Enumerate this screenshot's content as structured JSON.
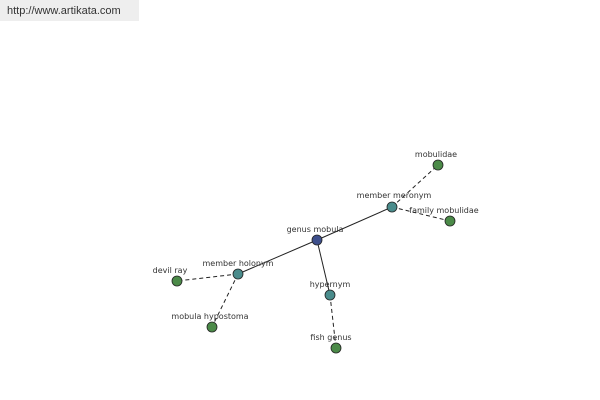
{
  "header": {
    "url": "http://www.artikata.com"
  },
  "nodes": [
    {
      "label": "genus mobula"
    },
    {
      "label": "member meronym"
    },
    {
      "label": "mobulidae"
    },
    {
      "label": "family mobulidae"
    },
    {
      "label": "member holonym"
    },
    {
      "label": "devil ray"
    },
    {
      "label": "mobula hypostoma"
    },
    {
      "label": "hypernym"
    },
    {
      "label": "fish genus"
    }
  ]
}
